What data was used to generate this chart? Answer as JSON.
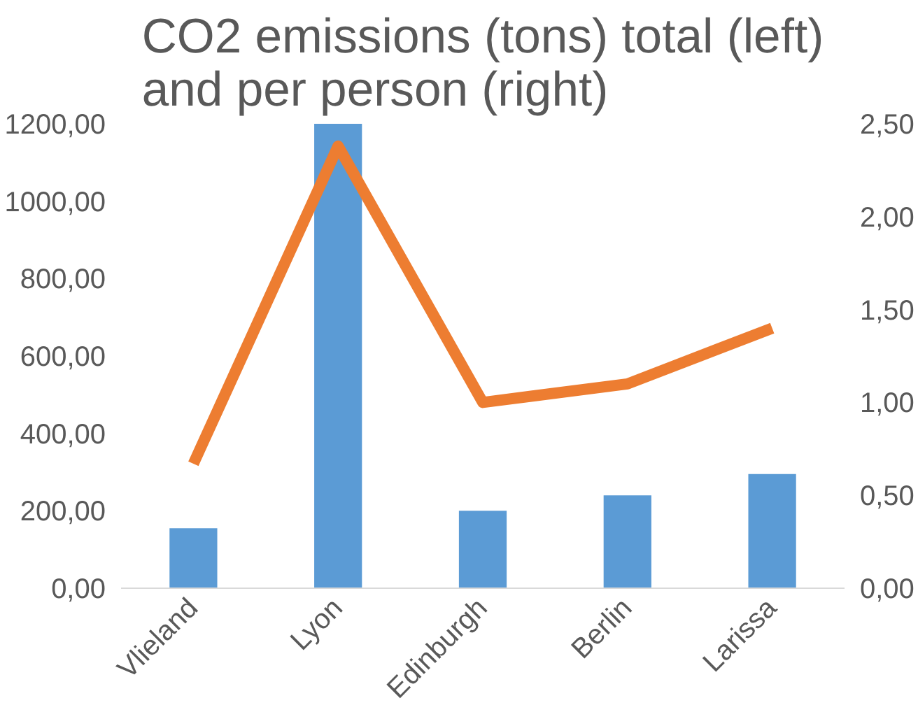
{
  "chart_data": {
    "type": "bar",
    "title": "CO2 emissions (tons) total (left)\nand per person (right)",
    "categories": [
      "Vlieland",
      "Lyon",
      "Edinburgh",
      "Berlin",
      "Larissa"
    ],
    "series": [
      {
        "color": "#5b9bd5",
        "values": [
          155,
          1200,
          200,
          240,
          295
        ]
      },
      {
        "type": "line",
        "axis": "y2",
        "color": "#ed7d31",
        "values": [
          0.67,
          2.38,
          1.0,
          1.1,
          1.4
        ]
      }
    ],
    "ylim": [
      0,
      1200
    ],
    "yticks": [
      {
        "value": 0,
        "label": "0,00"
      },
      {
        "value": 200,
        "label": "200,00"
      },
      {
        "value": 400,
        "label": "400,00"
      },
      {
        "value": 600,
        "label": "600,00"
      },
      {
        "value": 800,
        "label": "800,00"
      },
      {
        "value": 1000,
        "label": "1000,00"
      },
      {
        "value": 1200,
        "label": "1200,00"
      }
    ],
    "y2lim": [
      0,
      2.5
    ],
    "y2ticks": [
      {
        "value": 0,
        "label": "0,00"
      },
      {
        "value": 0.5,
        "label": "0,50"
      },
      {
        "value": 1,
        "label": "1,00"
      },
      {
        "value": 1.5,
        "label": "1,50"
      },
      {
        "value": 2,
        "label": "2,00"
      },
      {
        "value": 2.5,
        "label": "2,50"
      }
    ],
    "grid": false,
    "line_style": "solid",
    "marker": "none"
  }
}
